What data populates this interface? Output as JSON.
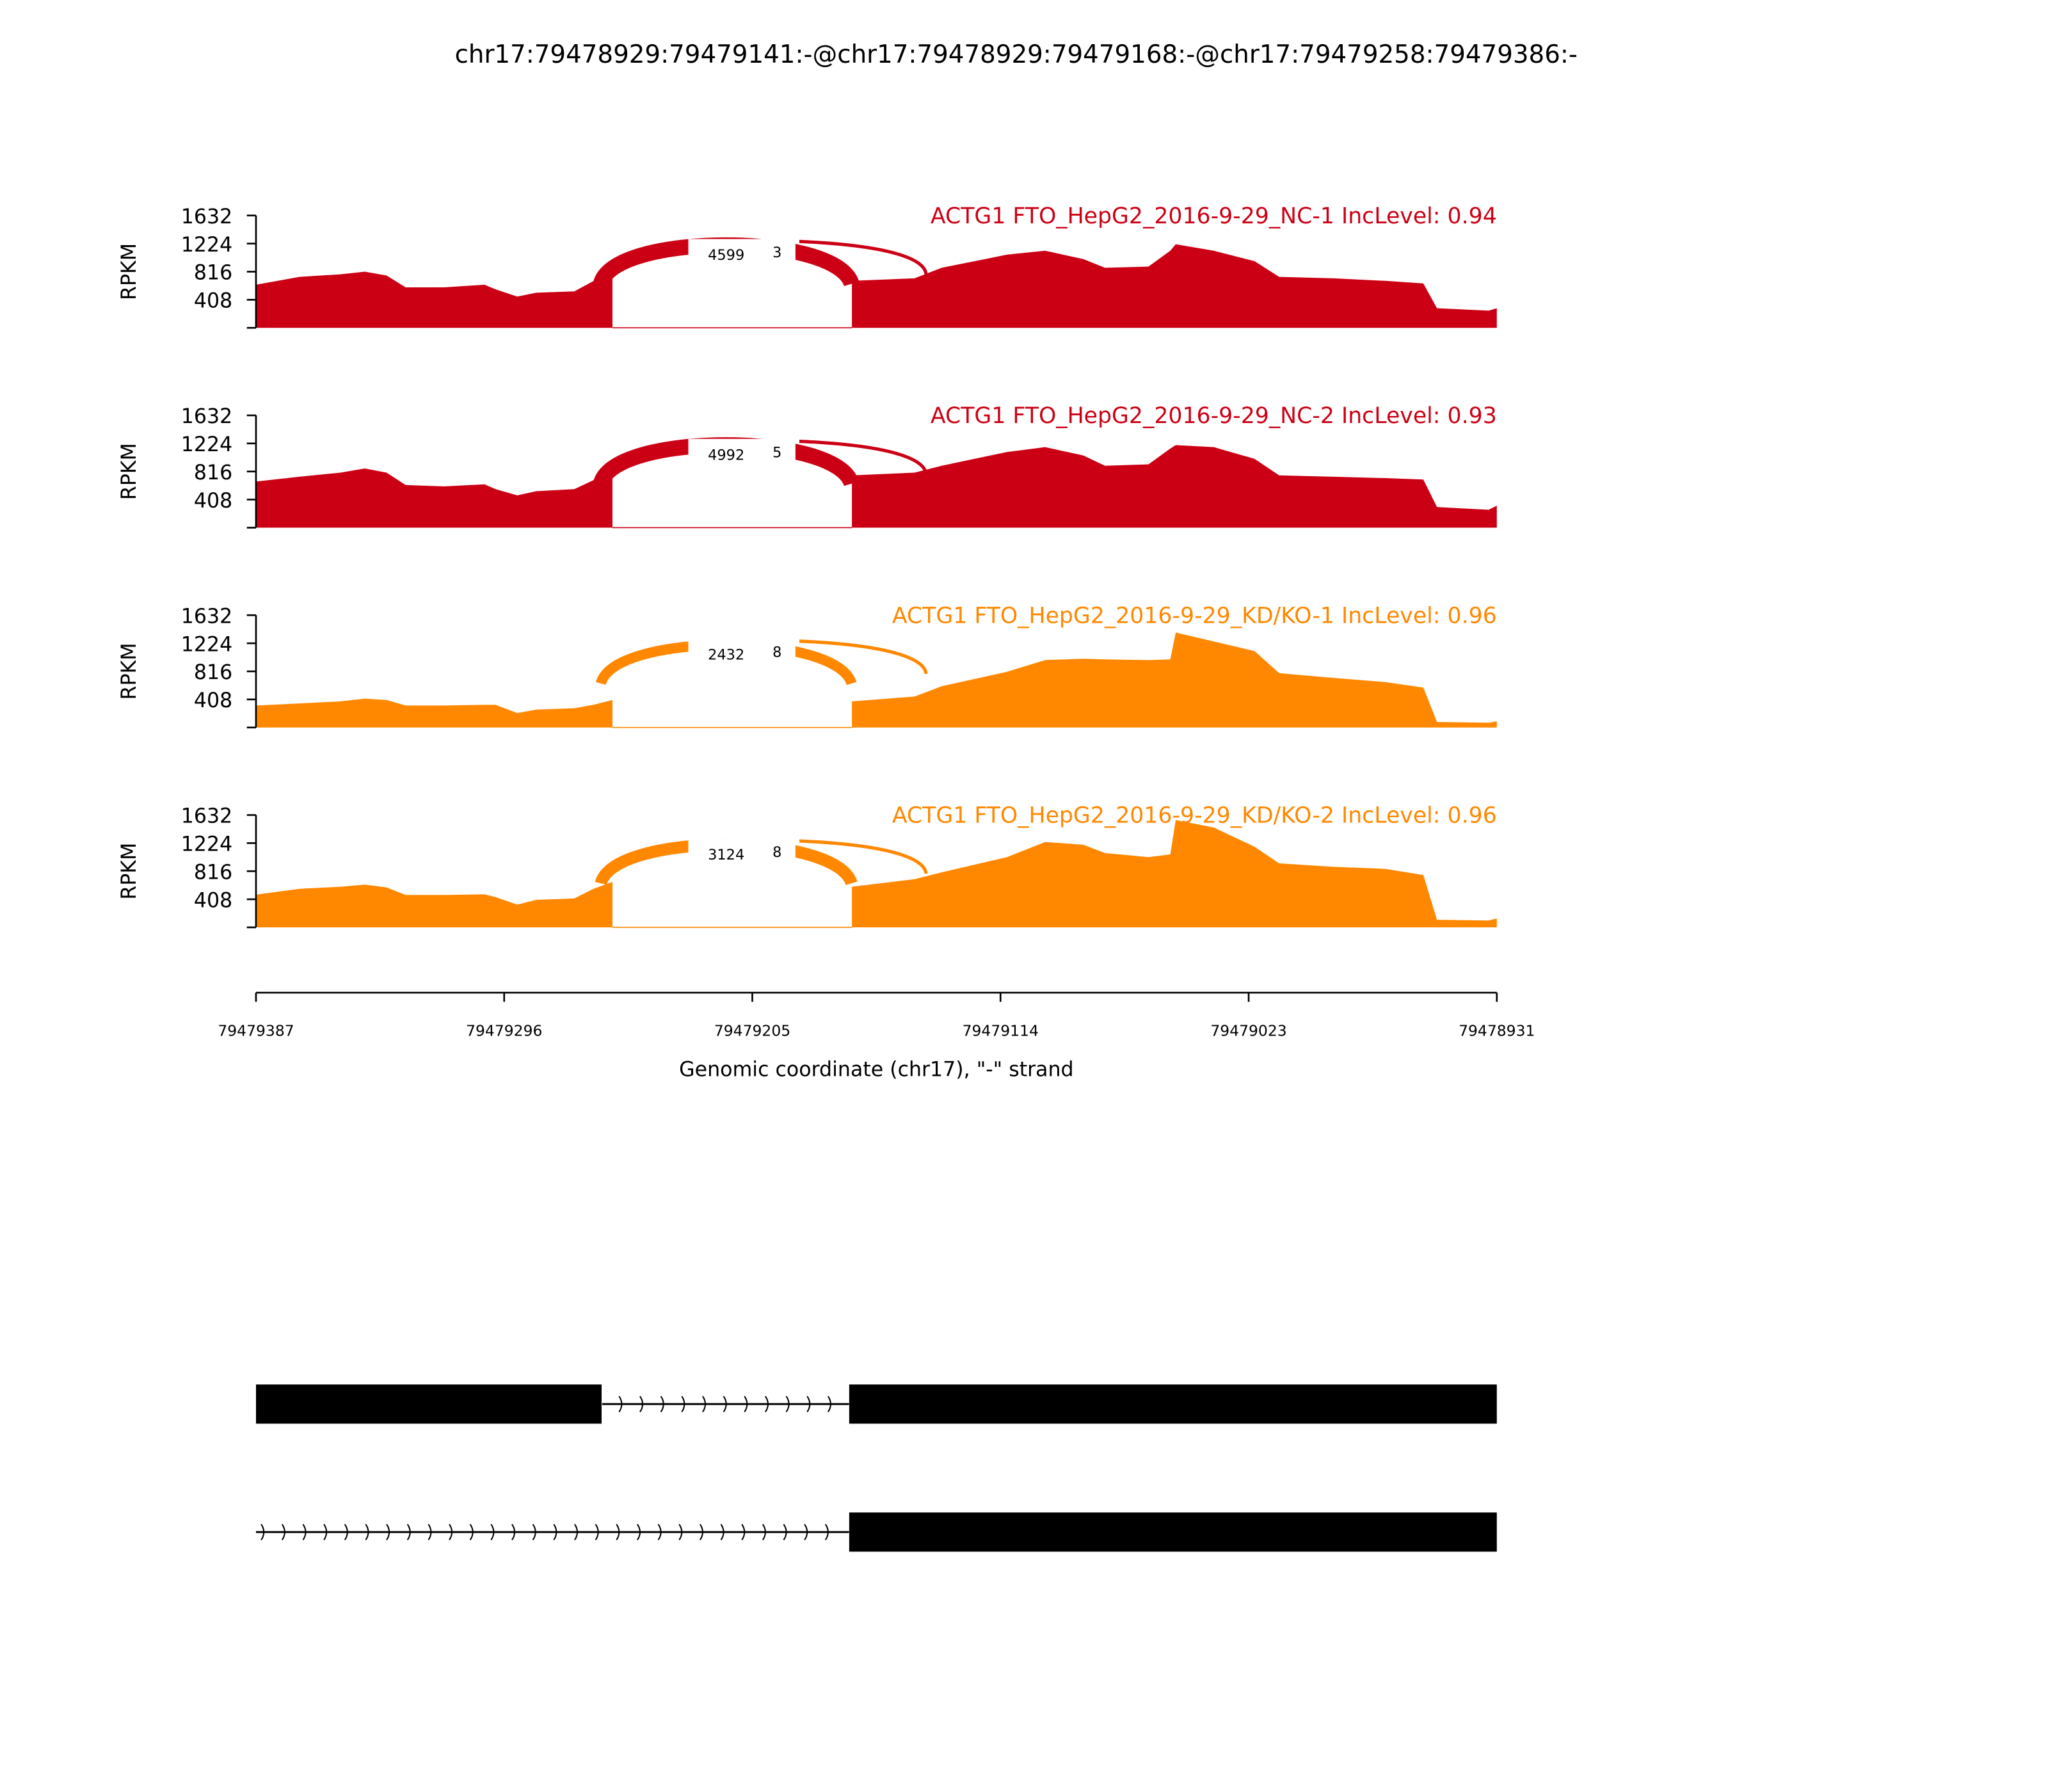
{
  "chart_data": {
    "type": "area",
    "title": "chr17:79478929:79479141:-@chr17:79478929:79479168:-@chr17:79479258:79479386:-",
    "xlabel": "Genomic coordinate (chr17), \"-\" strand",
    "ylabel": "RPKM",
    "xlim": [
      79479387,
      79478931
    ],
    "ylim": [
      0,
      1632
    ],
    "yticks": [
      "408",
      "816",
      "1224",
      "1632"
    ],
    "xtick_labels": [
      "79479387",
      "79479296",
      "79479205",
      "79479114",
      "79479023",
      "79478931"
    ],
    "grid": false,
    "exon1_positions": [
      79479387,
      79479371,
      79479356,
      79479347,
      79479339,
      79479332,
      79479318,
      79479303,
      79479299,
      79479291,
      79479284,
      79479270,
      79479263,
      79479256
    ],
    "exon2_positions": [
      79479168,
      79479145,
      79479135,
      79479111,
      79479097,
      79479083,
      79479075,
      79479059,
      79479051,
      79479049,
      79479035,
      79479020,
      79479011,
      79478991,
      79478972,
      79478958,
      79478953,
      79478934,
      79478931
    ],
    "series": [
      {
        "name": "ACTG1 FTO_HepG2_2016-9-29_NC-1 IncLevel: 0.94",
        "color": "#CC0014",
        "exon1": [
          626,
          740,
          778,
          816,
          760,
          588,
          588,
          626,
          560,
          455,
          510,
          530,
          680,
          740
        ],
        "exon2": [
          683,
          720,
          873,
          1063,
          1120,
          1000,
          873,
          890,
          1120,
          1215,
          1120,
          968,
          740,
          720,
          683,
          645,
          285,
          250,
          285
        ],
        "inclusion_junction": "4599",
        "skipping_junction": "3"
      },
      {
        "name": "ACTG1 FTO_HepG2_2016-9-29_NC-2 IncLevel: 0.93",
        "color": "#CC0014",
        "exon1": [
          670,
          740,
          800,
          860,
          800,
          620,
          600,
          630,
          560,
          470,
          530,
          560,
          690,
          760
        ],
        "exon2": [
          760,
          800,
          900,
          1100,
          1170,
          1050,
          900,
          920,
          1150,
          1200,
          1170,
          1000,
          760,
          740,
          720,
          700,
          300,
          260,
          320
        ],
        "inclusion_junction": "4992",
        "skipping_junction": "5"
      },
      {
        "name": "ACTG1 FTO_HepG2_2016-9-29_KD/KO-1 IncLevel: 0.96",
        "color": "#FF8800",
        "exon1": [
          320,
          350,
          380,
          420,
          400,
          320,
          320,
          330,
          330,
          210,
          260,
          280,
          330,
          400
        ],
        "exon2": [
          380,
          450,
          600,
          810,
          980,
          1000,
          990,
          980,
          990,
          1380,
          1250,
          1110,
          790,
          720,
          660,
          580,
          80,
          70,
          90
        ],
        "inclusion_junction": "2432",
        "skipping_junction": "8"
      },
      {
        "name": "ACTG1 FTO_HepG2_2016-9-29_KD/KO-2 IncLevel: 0.96",
        "color": "#FF8800",
        "exon1": [
          475,
          560,
          590,
          620,
          580,
          470,
          470,
          480,
          440,
          330,
          400,
          420,
          560,
          660
        ],
        "exon2": [
          590,
          700,
          800,
          1020,
          1240,
          1200,
          1080,
          1020,
          1060,
          1560,
          1450,
          1170,
          930,
          880,
          850,
          760,
          110,
          100,
          130
        ],
        "inclusion_junction": "3124",
        "skipping_junction": "8"
      }
    ],
    "gene_models": [
      {
        "exons": [
          [
            79479387,
            79479260
          ],
          [
            79479169,
            79478931
          ]
        ]
      },
      {
        "exons": [
          [
            79479169,
            79478931
          ]
        ]
      }
    ]
  }
}
